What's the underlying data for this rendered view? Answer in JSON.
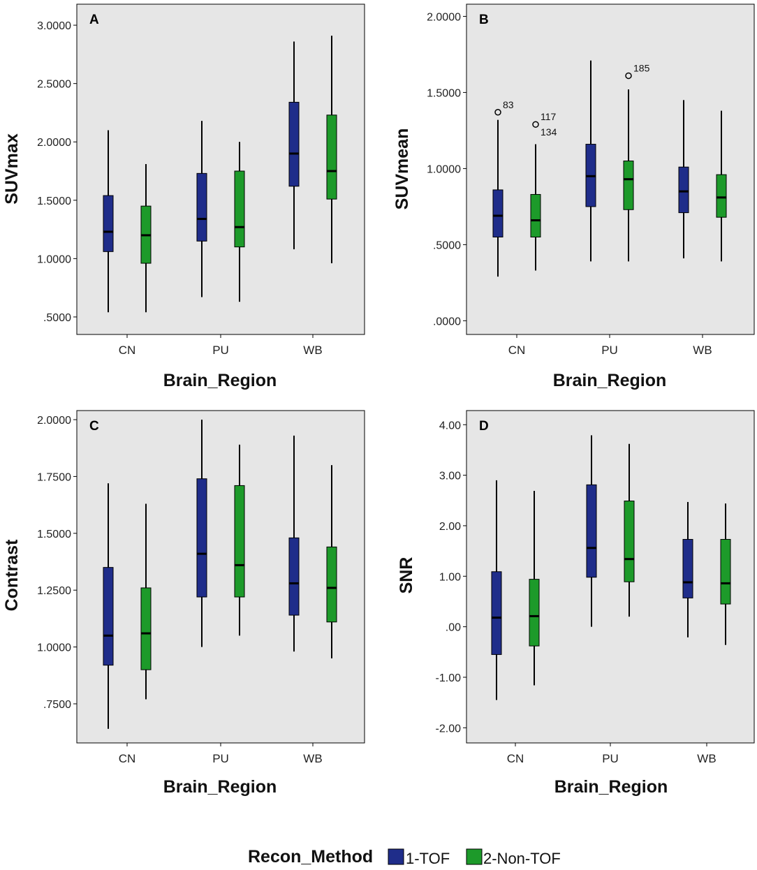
{
  "legend": {
    "title": "Recon_Method",
    "entries": [
      {
        "label": "1-TOF",
        "color": "#1f2d8a"
      },
      {
        "label": "2-Non-TOF",
        "color": "#1d9a2a"
      }
    ]
  },
  "chart_data": [
    {
      "type": "boxplot",
      "panel": "A",
      "xlabel": "Brain_Region",
      "ylabel": "SUVmax",
      "ylim": [
        0.35,
        3.18
      ],
      "yticks": [
        0.5,
        1.0,
        1.5,
        2.0,
        2.5,
        3.0
      ],
      "ytick_labels": [
        ".5000",
        "1.0000",
        "1.5000",
        "2.0000",
        "2.5000",
        "3.0000"
      ],
      "categories": [
        "CN",
        "PU",
        "WB"
      ],
      "series": [
        {
          "name": "1-TOF",
          "boxes": [
            {
              "min": 0.54,
              "q1": 1.06,
              "median": 1.23,
              "q3": 1.54,
              "max": 2.1
            },
            {
              "min": 0.67,
              "q1": 1.15,
              "median": 1.34,
              "q3": 1.73,
              "max": 2.18
            },
            {
              "min": 1.08,
              "q1": 1.62,
              "median": 1.9,
              "q3": 2.34,
              "max": 2.86
            }
          ]
        },
        {
          "name": "2-Non-TOF",
          "boxes": [
            {
              "min": 0.54,
              "q1": 0.96,
              "median": 1.2,
              "q3": 1.45,
              "max": 1.81
            },
            {
              "min": 0.63,
              "q1": 1.1,
              "median": 1.27,
              "q3": 1.75,
              "max": 2.0
            },
            {
              "min": 0.96,
              "q1": 1.51,
              "median": 1.75,
              "q3": 2.23,
              "max": 2.91
            }
          ]
        }
      ],
      "outliers": []
    },
    {
      "type": "boxplot",
      "panel": "B",
      "xlabel": "Brain_Region",
      "ylabel": "SUVmean",
      "ylim": [
        -0.09,
        2.08
      ],
      "yticks": [
        0.0,
        0.5,
        1.0,
        1.5,
        2.0
      ],
      "ytick_labels": [
        ".0000",
        ".5000",
        "1.0000",
        "1.5000",
        "2.0000"
      ],
      "categories": [
        "CN",
        "PU",
        "WB"
      ],
      "series": [
        {
          "name": "1-TOF",
          "boxes": [
            {
              "min": 0.29,
              "q1": 0.55,
              "median": 0.69,
              "q3": 0.86,
              "max": 1.32
            },
            {
              "min": 0.39,
              "q1": 0.75,
              "median": 0.95,
              "q3": 1.16,
              "max": 1.71
            },
            {
              "min": 0.41,
              "q1": 0.71,
              "median": 0.85,
              "q3": 1.01,
              "max": 1.45
            }
          ]
        },
        {
          "name": "2-Non-TOF",
          "boxes": [
            {
              "min": 0.33,
              "q1": 0.55,
              "median": 0.66,
              "q3": 0.83,
              "max": 1.16
            },
            {
              "min": 0.39,
              "q1": 0.73,
              "median": 0.93,
              "q3": 1.05,
              "max": 1.52
            },
            {
              "min": 0.39,
              "q1": 0.68,
              "median": 0.81,
              "q3": 0.96,
              "max": 1.38
            }
          ]
        }
      ],
      "outliers": [
        {
          "category": "CN",
          "series": "1-TOF",
          "value": 1.37,
          "label": "83"
        },
        {
          "category": "CN",
          "series": "2-Non-TOF",
          "value": 1.29,
          "label": "117"
        },
        {
          "category": "CN",
          "series": "2-Non-TOF",
          "value": 1.29,
          "label": "134"
        },
        {
          "category": "PU",
          "series": "2-Non-TOF",
          "value": 1.61,
          "label": "185"
        }
      ]
    },
    {
      "type": "boxplot",
      "panel": "C",
      "xlabel": "Brain_Region",
      "ylabel": "Contrast",
      "ylim": [
        0.578,
        2.04
      ],
      "yticks": [
        0.75,
        1.0,
        1.25,
        1.5,
        1.75,
        2.0
      ],
      "ytick_labels": [
        ".7500",
        "1.0000",
        "1.2500",
        "1.5000",
        "1.7500",
        "2.0000"
      ],
      "categories": [
        "CN",
        "PU",
        "WB"
      ],
      "series": [
        {
          "name": "1-TOF",
          "boxes": [
            {
              "min": 0.64,
              "q1": 0.92,
              "median": 1.05,
              "q3": 1.35,
              "max": 1.72
            },
            {
              "min": 1.0,
              "q1": 1.22,
              "median": 1.41,
              "q3": 1.74,
              "max": 2.0
            },
            {
              "min": 0.98,
              "q1": 1.14,
              "median": 1.28,
              "q3": 1.48,
              "max": 1.93
            }
          ]
        },
        {
          "name": "2-Non-TOF",
          "boxes": [
            {
              "min": 0.77,
              "q1": 0.9,
              "median": 1.06,
              "q3": 1.26,
              "max": 1.63
            },
            {
              "min": 1.05,
              "q1": 1.22,
              "median": 1.36,
              "q3": 1.71,
              "max": 1.89
            },
            {
              "min": 0.95,
              "q1": 1.11,
              "median": 1.26,
              "q3": 1.44,
              "max": 1.8
            }
          ]
        }
      ],
      "outliers": []
    },
    {
      "type": "boxplot",
      "panel": "D",
      "xlabel": "Brain_Region",
      "ylabel": "SNR",
      "ylim": [
        -2.3,
        4.28
      ],
      "yticks": [
        -2.0,
        -1.0,
        0.0,
        1.0,
        2.0,
        3.0,
        4.0
      ],
      "ytick_labels": [
        "-2.00",
        "-1.00",
        ".00",
        "1.00",
        "2.00",
        "3.00",
        "4.00"
      ],
      "categories": [
        "CN",
        "PU",
        "WB"
      ],
      "series": [
        {
          "name": "1-TOF",
          "boxes": [
            {
              "min": -1.45,
              "q1": -0.55,
              "median": 0.18,
              "q3": 1.09,
              "max": 2.9
            },
            {
              "min": 0.0,
              "q1": 0.98,
              "median": 1.56,
              "q3": 2.81,
              "max": 3.79
            },
            {
              "min": -0.21,
              "q1": 0.57,
              "median": 0.88,
              "q3": 1.73,
              "max": 2.47
            }
          ]
        },
        {
          "name": "2-Non-TOF",
          "boxes": [
            {
              "min": -1.16,
              "q1": -0.38,
              "median": 0.21,
              "q3": 0.94,
              "max": 2.69
            },
            {
              "min": 0.2,
              "q1": 0.89,
              "median": 1.34,
              "q3": 2.49,
              "max": 3.62
            },
            {
              "min": -0.36,
              "q1": 0.45,
              "median": 0.86,
              "q3": 1.73,
              "max": 2.44
            }
          ]
        }
      ],
      "outliers": []
    }
  ]
}
